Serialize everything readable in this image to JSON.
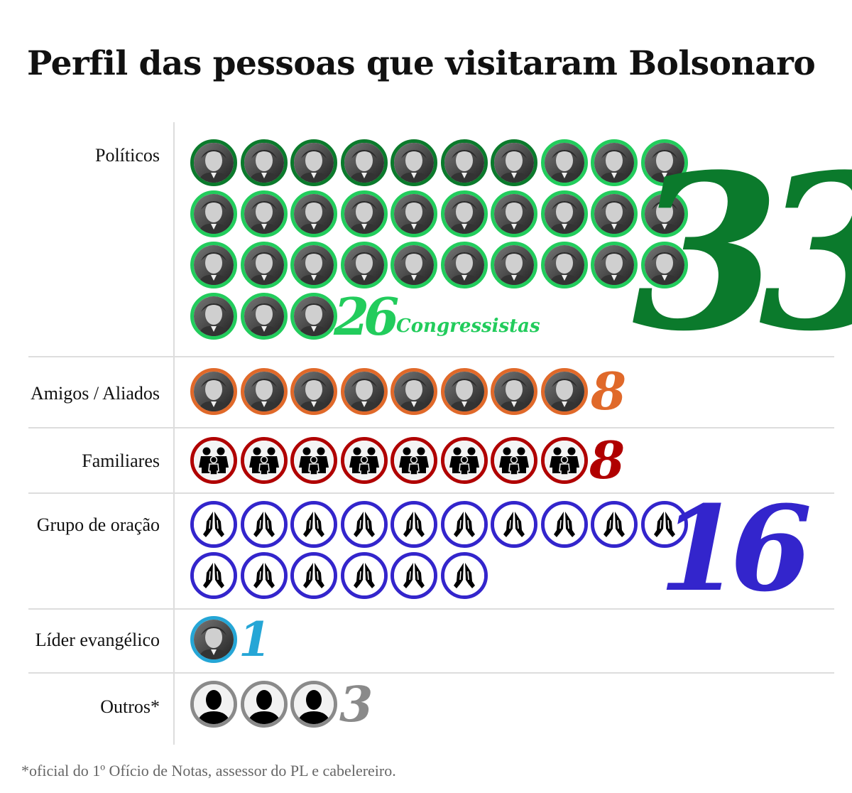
{
  "title": "Perfil das pessoas que visitaram Bolsonaro",
  "footnote": "*oficial do 1º Ofício de Notas, assessor do PL e cabelereiro.",
  "chart_data": {
    "type": "pictogram",
    "title": "Perfil das pessoas que visitaram Bolsonaro",
    "categories": [
      "Políticos",
      "Amigos / Aliados",
      "Familiares",
      "Grupo de oração",
      "Líder evangélico",
      "Outros*"
    ],
    "values": [
      33,
      8,
      8,
      16,
      1,
      3
    ],
    "totals_labels": [
      "33",
      "8",
      "8",
      "16",
      "1",
      "3"
    ],
    "sub_annotation": {
      "category": "Políticos",
      "value": 26,
      "value_label": "26",
      "label": "Congressistas",
      "color": "#22c55e"
    },
    "colors": [
      "#0b7a2c",
      "#e0692a",
      "#b00000",
      "#3325cc",
      "#25a6d6",
      "#8a8a8a"
    ],
    "secondary_color": "#22cc5c",
    "icons": [
      "photo-portrait",
      "photo-portrait",
      "family-icon",
      "praying-hands-icon",
      "photo-portrait",
      "person-silhouette-icon"
    ]
  }
}
